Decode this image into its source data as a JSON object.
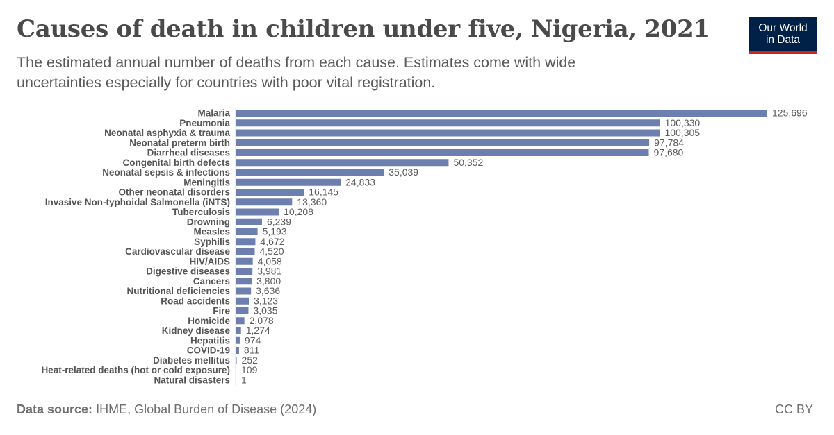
{
  "header": {
    "title": "Causes of death in children under five, Nigeria, 2021",
    "subtitle": "The estimated annual number of deaths from each cause. Estimates come with wide uncertainties especially for countries with poor vital registration.",
    "logo_line1": "Our World",
    "logo_line2": "in Data"
  },
  "footer": {
    "source_label": "Data source:",
    "source_text": "IHME, Global Burden of Disease (2024)",
    "license": "CC BY"
  },
  "colors": {
    "bar": "#6d7fae",
    "logo_bg": "#002147",
    "logo_accent": "#ce261e"
  },
  "chart_data": {
    "type": "bar",
    "orientation": "horizontal",
    "categories": [
      "Malaria",
      "Pneumonia",
      "Neonatal asphyxia & trauma",
      "Neonatal preterm birth",
      "Diarrheal diseases",
      "Congenital birth defects",
      "Neonatal sepsis & infections",
      "Meningitis",
      "Other neonatal disorders",
      "Invasive Non-typhoidal Salmonella (iNTS)",
      "Tuberculosis",
      "Drowning",
      "Measles",
      "Syphilis",
      "Cardiovascular disease",
      "HIV/AIDS",
      "Digestive diseases",
      "Cancers",
      "Nutritional deficiencies",
      "Road accidents",
      "Fire",
      "Homicide",
      "Kidney disease",
      "Hepatitis",
      "COVID-19",
      "Diabetes mellitus",
      "Heat-related deaths (hot or cold exposure)",
      "Natural disasters"
    ],
    "values": [
      125696,
      100330,
      100305,
      97784,
      97680,
      50352,
      35039,
      24833,
      16145,
      13360,
      10208,
      6239,
      5193,
      4672,
      4520,
      4058,
      3981,
      3800,
      3636,
      3123,
      3035,
      2078,
      1274,
      974,
      811,
      252,
      109,
      1
    ],
    "value_labels": [
      "125,696",
      "100,330",
      "100,305",
      "97,784",
      "97,680",
      "50,352",
      "35,039",
      "24,833",
      "16,145",
      "13,360",
      "10,208",
      "6,239",
      "5,193",
      "4,672",
      "4,520",
      "4,058",
      "3,981",
      "3,800",
      "3,636",
      "3,123",
      "3,035",
      "2,078",
      "1,274",
      "974",
      "811",
      "252",
      "109",
      "1"
    ],
    "xlim": [
      0,
      125696
    ],
    "grid": false,
    "legend": "none"
  }
}
